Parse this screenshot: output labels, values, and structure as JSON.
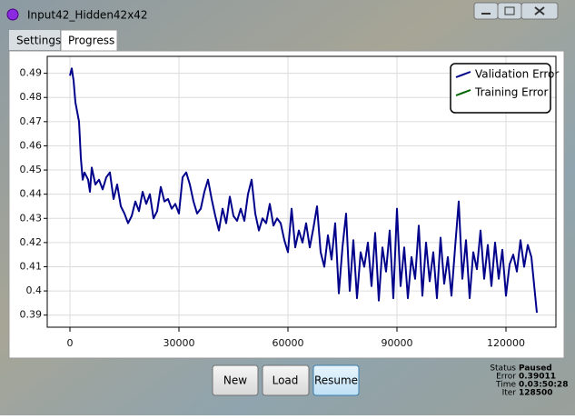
{
  "window": {
    "title": "Input42_Hidden42x42"
  },
  "tabs": [
    "Settings",
    "Progress"
  ],
  "chart_data": {
    "type": "line",
    "series": [
      {
        "name": "Validation Error",
        "color": "#00008b",
        "x": [
          0,
          500,
          1000,
          1500,
          2500,
          3000,
          3500,
          4000,
          5000,
          5500,
          6000,
          7000,
          8000,
          9000,
          10000,
          11000,
          12000,
          13000,
          14000,
          15000,
          16000,
          17000,
          18000,
          19000,
          20000,
          21000,
          22000,
          23000,
          24000,
          25000,
          26000,
          27000,
          28000,
          29000,
          30000,
          31000,
          32000,
          33000,
          34000,
          35000,
          36000,
          37000,
          38000,
          39000,
          40000,
          41000,
          42000,
          43000,
          44000,
          45000,
          46000,
          47000,
          48000,
          49000,
          50000,
          51000,
          52000,
          53000,
          54000,
          55000,
          56000,
          57000,
          58000,
          59000,
          60000,
          61000,
          62000,
          63000,
          64000,
          65000,
          66000,
          67000,
          68000,
          69000,
          70000,
          71000,
          72000,
          73000,
          74000,
          75000,
          76000,
          77000,
          78000,
          79000,
          80000,
          81000,
          82000,
          83000,
          84000,
          85000,
          86000,
          87000,
          88000,
          89000,
          90000,
          91000,
          92000,
          93000,
          94000,
          95000,
          96000,
          97000,
          98000,
          99000,
          100000,
          101000,
          102000,
          103000,
          104000,
          105000,
          106000,
          107000,
          108000,
          109000,
          110000,
          111000,
          112000,
          113000,
          114000,
          115000,
          116000,
          117000,
          118000,
          119000,
          120000,
          121000,
          122000,
          123000,
          124000,
          125000,
          126000,
          127000,
          128500
        ],
        "values": [
          0.489,
          0.492,
          0.487,
          0.478,
          0.47,
          0.455,
          0.446,
          0.449,
          0.446,
          0.441,
          0.451,
          0.444,
          0.446,
          0.442,
          0.447,
          0.449,
          0.438,
          0.444,
          0.435,
          0.432,
          0.428,
          0.431,
          0.437,
          0.433,
          0.441,
          0.436,
          0.44,
          0.43,
          0.433,
          0.443,
          0.437,
          0.438,
          0.434,
          0.436,
          0.432,
          0.447,
          0.449,
          0.444,
          0.437,
          0.432,
          0.434,
          0.441,
          0.446,
          0.438,
          0.431,
          0.425,
          0.434,
          0.428,
          0.439,
          0.431,
          0.429,
          0.434,
          0.429,
          0.44,
          0.446,
          0.432,
          0.425,
          0.43,
          0.428,
          0.436,
          0.427,
          0.43,
          0.428,
          0.421,
          0.416,
          0.434,
          0.418,
          0.425,
          0.42,
          0.428,
          0.418,
          0.426,
          0.435,
          0.416,
          0.41,
          0.423,
          0.413,
          0.428,
          0.399,
          0.418,
          0.432,
          0.4,
          0.421,
          0.397,
          0.416,
          0.41,
          0.42,
          0.402,
          0.424,
          0.396,
          0.418,
          0.408,
          0.425,
          0.397,
          0.434,
          0.402,
          0.418,
          0.397,
          0.414,
          0.405,
          0.427,
          0.398,
          0.42,
          0.404,
          0.416,
          0.397,
          0.422,
          0.403,
          0.414,
          0.398,
          0.418,
          0.437,
          0.405,
          0.421,
          0.397,
          0.416,
          0.409,
          0.425,
          0.405,
          0.419,
          0.402,
          0.42,
          0.405,
          0.417,
          0.398,
          0.411,
          0.415,
          0.408,
          0.421,
          0.41,
          0.419,
          0.414,
          0.391
        ]
      },
      {
        "name": "Training Error",
        "color": "#006400",
        "x": [],
        "values": []
      }
    ],
    "xlim": [
      -6250,
      133750
    ],
    "xticks": [
      0,
      30000,
      60000,
      90000,
      120000
    ],
    "ylim": [
      0.385,
      0.497
    ],
    "yticks": [
      0.39,
      0.4,
      0.41,
      0.42,
      0.43,
      0.44,
      0.45,
      0.46,
      0.47,
      0.48,
      0.49
    ],
    "grid": true,
    "legend": "upper right"
  },
  "buttons": [
    "New",
    "Load",
    "Resume"
  ],
  "status": {
    "labels": [
      "Status",
      "Error",
      "Time",
      "Iter"
    ],
    "values": [
      "Paused",
      "0.39011",
      "0.03:50:28",
      "128500"
    ]
  }
}
